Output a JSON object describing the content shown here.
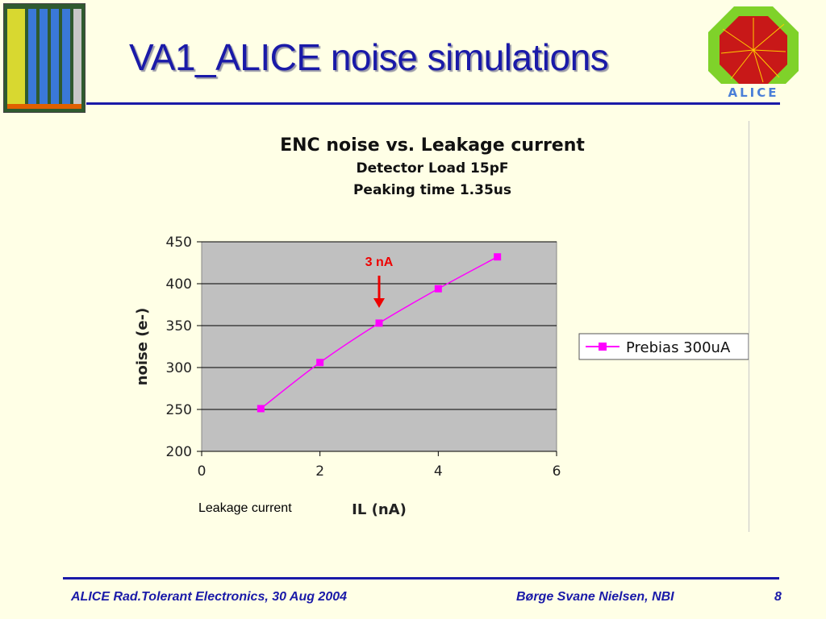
{
  "slide": {
    "title": "VA1_ALICE noise simulations",
    "logo_text": "ALICE",
    "xlabel_prefix": "Leakage current",
    "footer": {
      "left": "ALICE Rad.Tolerant Electronics, 30 Aug 2004",
      "center": "Børge Svane Nielsen, NBI",
      "page": "8"
    }
  },
  "chart_data": {
    "type": "line",
    "title": "ENC noise vs. Leakage current",
    "subtitle_lines": [
      "Detector Load 15pF",
      "Peaking time 1.35us"
    ],
    "xlabel": "IL (nA)",
    "ylabel": "noise (e-)",
    "xlim": [
      0,
      6
    ],
    "ylim": [
      200,
      450
    ],
    "xticks": [
      0,
      2,
      4,
      6
    ],
    "yticks": [
      200,
      250,
      300,
      350,
      400,
      450
    ],
    "grid": "horizontal",
    "legend_position": "right",
    "series": [
      {
        "name": "Prebias 300uA",
        "color": "#ff00ff",
        "marker": "square",
        "x": [
          1,
          2,
          3,
          4,
          5
        ],
        "y": [
          251,
          306,
          353,
          394,
          432
        ]
      }
    ],
    "annotations": [
      {
        "text": "3 nA",
        "x": 3,
        "color": "#ee0000",
        "arrow": "down"
      }
    ],
    "plot_background": "#c0c0c0"
  }
}
